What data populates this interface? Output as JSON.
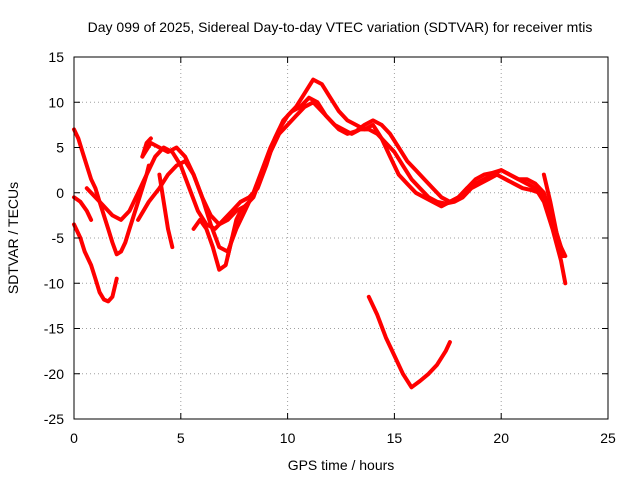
{
  "chart_data": {
    "type": "scatter",
    "title": "Day 099 of 2025, Sidereal Day-to-day VTEC variation (SDTVAR) for receiver mtis",
    "xlabel": "GPS time / hours",
    "ylabel": "SDTVAR / TECUs",
    "xlim": [
      0,
      25
    ],
    "ylim": [
      -25,
      15
    ],
    "xticks": [
      0,
      5,
      10,
      15,
      20,
      25
    ],
    "yticks": [
      -25,
      -20,
      -15,
      -10,
      -5,
      0,
      5,
      10,
      15
    ],
    "grid": true,
    "marker_color": "#ff0000",
    "series": [
      {
        "x": [
          0,
          0.2,
          0.4,
          0.6,
          0.8,
          1.0,
          1.2,
          1.4,
          1.6,
          1.8,
          2.0,
          2.2,
          2.4,
          2.6,
          2.8,
          3.0,
          3.2,
          3.4,
          3.5
        ],
        "y": [
          7.0,
          6.0,
          4.5,
          3.0,
          1.5,
          0.5,
          -1.0,
          -2.5,
          -4.0,
          -5.5,
          -6.8,
          -6.5,
          -5.5,
          -4.0,
          -2.5,
          -1.0,
          0.5,
          2.0,
          3.0
        ]
      },
      {
        "x": [
          0,
          0.3,
          0.5,
          0.8,
          1.0,
          1.2,
          1.4,
          1.6,
          1.8,
          2.0
        ],
        "y": [
          -3.5,
          -5.0,
          -6.5,
          -8.0,
          -9.5,
          -11.0,
          -11.8,
          -12.0,
          -11.5,
          -9.5
        ]
      },
      {
        "x": [
          0,
          0.3,
          0.6,
          0.8
        ],
        "y": [
          -0.5,
          -1.0,
          -2.0,
          -3.0
        ]
      },
      {
        "x": [
          0.6,
          1.0,
          1.4,
          1.8,
          2.2,
          2.6,
          3.0,
          3.4,
          3.8,
          4.2,
          4.6,
          5.0,
          5.4,
          5.8,
          6.2,
          6.6,
          7.0,
          7.4,
          7.8,
          8.2,
          8.6,
          9.0,
          9.4,
          9.8,
          10.2,
          10.6,
          11.0,
          11.4,
          11.8,
          12.2,
          12.6,
          13.0,
          13.4,
          13.8,
          14.2,
          14.6,
          15.0,
          15.4,
          15.8,
          16.2,
          16.6,
          17.0,
          17.4,
          17.8,
          18.2,
          18.6,
          19.0,
          19.4,
          19.8,
          20.2,
          20.6,
          21.0,
          21.4,
          21.8,
          22.2,
          22.6,
          23.0
        ],
        "y": [
          0.5,
          -0.5,
          -1.5,
          -2.5,
          -3.0,
          -2.0,
          0.0,
          2.0,
          4.0,
          5.0,
          4.5,
          3.0,
          0.5,
          -2.0,
          -3.5,
          -4.0,
          -3.0,
          -2.0,
          -1.0,
          -0.5,
          0.5,
          3.0,
          6.0,
          8.0,
          9.0,
          9.5,
          10.5,
          10.0,
          8.5,
          7.5,
          7.0,
          6.5,
          7.0,
          7.0,
          6.5,
          5.5,
          4.5,
          3.0,
          1.5,
          0.5,
          -0.5,
          -1.0,
          -1.2,
          -1.0,
          -0.5,
          0.5,
          1.0,
          1.5,
          2.0,
          1.5,
          1.0,
          0.5,
          0.3,
          0.0,
          -1.5,
          -5.0,
          -7.0
        ]
      },
      {
        "x": [
          3.2,
          3.6,
          4.0,
          4.4,
          4.8,
          5.2,
          5.6,
          6.0,
          6.4,
          6.8,
          7.2,
          7.6,
          8.0,
          8.4,
          8.8,
          9.2,
          9.6,
          10.0,
          10.4,
          10.8,
          11.2,
          11.6,
          12.0,
          12.4,
          12.8,
          13.2,
          13.6,
          14.0,
          14.4,
          14.8,
          15.2,
          15.6,
          16.0,
          16.4,
          16.8,
          17.2,
          17.6,
          18.0,
          18.4,
          18.8,
          19.2,
          19.6,
          20.0,
          20.4,
          20.8,
          21.2,
          21.6,
          22.0,
          22.4,
          22.8
        ],
        "y": [
          4.0,
          5.5,
          5.0,
          4.5,
          5.0,
          4.0,
          2.0,
          -0.5,
          -2.5,
          -3.5,
          -3.0,
          -2.0,
          -1.5,
          -0.5,
          2.0,
          4.5,
          6.5,
          7.5,
          8.5,
          9.5,
          10.0,
          9.0,
          8.0,
          7.0,
          6.5,
          6.8,
          7.5,
          8.0,
          7.5,
          6.5,
          5.0,
          3.5,
          2.5,
          1.5,
          0.5,
          -0.5,
          -1.0,
          -0.5,
          0.5,
          1.5,
          2.0,
          2.2,
          2.5,
          2.0,
          1.5,
          1.5,
          1.0,
          0.0,
          -3.0,
          -6.0
        ]
      },
      {
        "x": [
          3.0,
          3.5,
          4.0,
          4.4,
          4.8,
          5.2,
          5.6,
          6.0,
          6.4,
          6.8,
          7.2,
          7.6,
          8.0,
          8.4,
          8.8,
          9.2,
          9.6,
          10.0,
          10.4,
          10.8,
          11.2,
          11.6,
          12.0,
          12.4,
          12.8,
          13.2,
          13.6,
          14.0,
          14.4,
          14.8,
          15.2,
          15.6,
          16.0,
          16.4,
          16.8,
          17.2,
          17.6,
          18.0,
          18.4,
          18.8,
          19.2,
          19.6,
          20.0,
          20.4,
          20.8,
          21.2,
          21.6,
          22.0,
          22.4,
          22.8,
          23.0
        ],
        "y": [
          -3.0,
          -1.0,
          0.5,
          2.0,
          3.0,
          3.5,
          2.0,
          -0.5,
          -3.5,
          -6.0,
          -6.5,
          -4.0,
          -2.0,
          0.0,
          2.5,
          5.0,
          7.0,
          8.5,
          9.5,
          11.0,
          12.5,
          12.0,
          10.5,
          9.0,
          8.0,
          7.5,
          7.0,
          7.5,
          6.0,
          4.0,
          2.0,
          1.0,
          0.0,
          -0.5,
          -1.0,
          -1.5,
          -1.0,
          -0.5,
          0.5,
          1.0,
          1.5,
          2.0,
          2.5,
          2.0,
          1.5,
          1.0,
          0.5,
          -1.0,
          -4.0,
          -7.5,
          -10.0
        ]
      },
      {
        "x": [
          3.2,
          3.4,
          3.6
        ],
        "y": [
          4.0,
          5.5,
          6.0
        ]
      },
      {
        "x": [
          4.0,
          4.2,
          4.4,
          4.6
        ],
        "y": [
          2.0,
          -1.0,
          -4.0,
          -6.0
        ]
      },
      {
        "x": [
          5.6,
          5.9,
          6.2,
          6.5,
          6.8,
          7.1,
          7.4
        ],
        "y": [
          -4.0,
          -3.0,
          -4.0,
          -6.0,
          -8.5,
          -8.0,
          -5.0
        ]
      },
      {
        "x": [
          7.2,
          7.4,
          7.6,
          7.8,
          8.0
        ],
        "y": [
          -7.0,
          -5.0,
          -3.0,
          -2.0,
          -1.5
        ]
      },
      {
        "x": [
          22.0,
          22.3,
          22.6,
          22.9
        ],
        "y": [
          2.0,
          -1.0,
          -4.5,
          -7.0
        ]
      },
      {
        "x": [
          13.8,
          14.2,
          14.6,
          15.0,
          15.4,
          15.8,
          16.2,
          16.6,
          17.0,
          17.4,
          17.6
        ],
        "y": [
          -11.5,
          -13.5,
          -16.0,
          -18.0,
          -20.0,
          -21.5,
          -20.8,
          -20.0,
          -19.0,
          -17.5,
          -16.5
        ]
      }
    ]
  }
}
